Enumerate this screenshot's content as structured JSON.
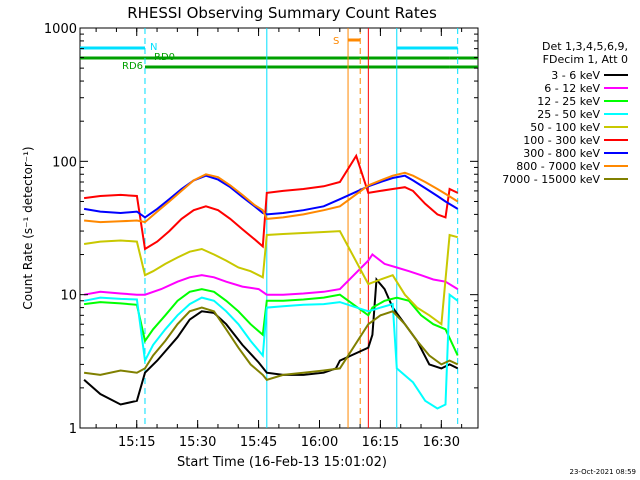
{
  "chart_data": {
    "type": "line",
    "title": "RHESSI Observing Summary Count Rates",
    "xlabel": "Start Time (16-Feb-13 15:01:02)",
    "ylabel": "Count Rate (s⁻¹ detector⁻¹)",
    "x_ticks": [
      "15:15",
      "15:30",
      "15:45",
      "16:00",
      "16:15",
      "16:30"
    ],
    "y_ticks": [
      "1",
      "10",
      "100",
      "1000"
    ],
    "xlim_minutes": [
      0,
      98
    ],
    "ylim": [
      1,
      1000
    ],
    "yscale": "log",
    "legend_header": [
      "Det 1,3,4,5,6,9,",
      "FDecim 1, Att 0"
    ],
    "timestamp": "23-Oct-2021 08:59",
    "flags": [
      {
        "label": "N",
        "color": "#00e0ff",
        "segments": [
          [
            0,
            16
          ],
          [
            78,
            93
          ]
        ]
      },
      {
        "label": "RD0",
        "color": "#00a000",
        "segments": [
          [
            0,
            16
          ],
          [
            16,
            46
          ],
          [
            46,
            71
          ],
          [
            71,
            91
          ],
          [
            91,
            98
          ]
        ]
      },
      {
        "label": "RD6",
        "color": "#00a000",
        "segments": []
      },
      {
        "label": "S",
        "color": "#ff8800",
        "segments": [
          [
            66,
            69
          ]
        ]
      }
    ],
    "series": [
      {
        "name": "3 - 6 keV",
        "color": "#000000",
        "points": [
          [
            1,
            2.3
          ],
          [
            5,
            1.8
          ],
          [
            10,
            1.5
          ],
          [
            14,
            1.6
          ],
          [
            16,
            2.6
          ],
          [
            19,
            3.2
          ],
          [
            24,
            4.8
          ],
          [
            27,
            6.5
          ],
          [
            30,
            7.5
          ],
          [
            33,
            7.3
          ],
          [
            36,
            6
          ],
          [
            40,
            4.2
          ],
          [
            44,
            3.1
          ],
          [
            46,
            2.6
          ],
          [
            50,
            2.5
          ],
          [
            55,
            2.5
          ],
          [
            60,
            2.6
          ],
          [
            63,
            2.8
          ],
          [
            64,
            3.2
          ],
          [
            71,
            4
          ],
          [
            72,
            5
          ],
          [
            73,
            13
          ],
          [
            75,
            11
          ],
          [
            77,
            8
          ],
          [
            80,
            6
          ],
          [
            83,
            4.5
          ],
          [
            86,
            3
          ],
          [
            89,
            2.8
          ],
          [
            91,
            3
          ],
          [
            93,
            2.8
          ]
        ]
      },
      {
        "name": "6 - 12 keV",
        "color": "#ff00ff",
        "points": [
          [
            1,
            10
          ],
          [
            5,
            10.5
          ],
          [
            10,
            10.2
          ],
          [
            14,
            10
          ],
          [
            16,
            10
          ],
          [
            20,
            11
          ],
          [
            24,
            12.5
          ],
          [
            27,
            13.5
          ],
          [
            30,
            14
          ],
          [
            33,
            13.5
          ],
          [
            36,
            12.5
          ],
          [
            40,
            11.5
          ],
          [
            44,
            11
          ],
          [
            46,
            10
          ],
          [
            50,
            10
          ],
          [
            55,
            10.2
          ],
          [
            60,
            10.5
          ],
          [
            64,
            11
          ],
          [
            71,
            18
          ],
          [
            72,
            20
          ],
          [
            75,
            17
          ],
          [
            78,
            16
          ],
          [
            81,
            15
          ],
          [
            84,
            14
          ],
          [
            87,
            13
          ],
          [
            90,
            12.5
          ],
          [
            93,
            11
          ]
        ]
      },
      {
        "name": "12 - 25 keV",
        "color": "#00ff00",
        "points": [
          [
            1,
            8.5
          ],
          [
            5,
            8.8
          ],
          [
            10,
            8.6
          ],
          [
            14,
            8.4
          ],
          [
            16,
            4.5
          ],
          [
            18,
            5.5
          ],
          [
            21,
            7
          ],
          [
            24,
            9
          ],
          [
            27,
            10.5
          ],
          [
            30,
            11
          ],
          [
            33,
            10.5
          ],
          [
            36,
            9
          ],
          [
            39,
            7.5
          ],
          [
            42,
            6
          ],
          [
            45,
            5
          ],
          [
            46,
            9
          ],
          [
            50,
            9
          ],
          [
            55,
            9.2
          ],
          [
            60,
            9.5
          ],
          [
            64,
            10
          ],
          [
            71,
            7
          ],
          [
            72,
            8
          ],
          [
            75,
            9
          ],
          [
            78,
            9.5
          ],
          [
            81,
            9
          ],
          [
            84,
            7
          ],
          [
            87,
            6
          ],
          [
            90,
            5.5
          ],
          [
            93,
            3.5
          ]
        ]
      },
      {
        "name": "25 - 50 keV",
        "color": "#00ffff",
        "points": [
          [
            1,
            9
          ],
          [
            5,
            9.5
          ],
          [
            10,
            9.3
          ],
          [
            14,
            9.2
          ],
          [
            16,
            3.2
          ],
          [
            18,
            4.2
          ],
          [
            21,
            5.5
          ],
          [
            24,
            7
          ],
          [
            27,
            8.5
          ],
          [
            30,
            9.5
          ],
          [
            33,
            9
          ],
          [
            36,
            7.5
          ],
          [
            39,
            6
          ],
          [
            42,
            4.5
          ],
          [
            45,
            3.5
          ],
          [
            46,
            8
          ],
          [
            50,
            8.2
          ],
          [
            55,
            8.4
          ],
          [
            60,
            8.5
          ],
          [
            64,
            8.8
          ],
          [
            71,
            7.5
          ],
          [
            74,
            8
          ],
          [
            77,
            8.5
          ],
          [
            78,
            2.8
          ],
          [
            82,
            2.2
          ],
          [
            85,
            1.6
          ],
          [
            88,
            1.4
          ],
          [
            90,
            1.5
          ],
          [
            91,
            10
          ],
          [
            93,
            9
          ]
        ]
      },
      {
        "name": "50 - 100 keV",
        "color": "#c8c800",
        "points": [
          [
            1,
            24
          ],
          [
            5,
            25
          ],
          [
            10,
            25.5
          ],
          [
            14,
            25
          ],
          [
            16,
            14
          ],
          [
            18,
            15
          ],
          [
            21,
            17
          ],
          [
            24,
            19
          ],
          [
            27,
            21
          ],
          [
            30,
            22
          ],
          [
            33,
            20
          ],
          [
            36,
            18
          ],
          [
            39,
            16
          ],
          [
            42,
            15
          ],
          [
            45,
            13.5
          ],
          [
            46,
            28
          ],
          [
            50,
            28.5
          ],
          [
            55,
            29
          ],
          [
            60,
            29.5
          ],
          [
            64,
            30
          ],
          [
            71,
            12
          ],
          [
            74,
            13
          ],
          [
            77,
            14
          ],
          [
            80,
            10
          ],
          [
            83,
            8
          ],
          [
            86,
            7
          ],
          [
            89,
            6
          ],
          [
            91,
            28
          ],
          [
            93,
            27
          ]
        ]
      },
      {
        "name": "100 - 300 keV",
        "color": "#ff0000",
        "points": [
          [
            1,
            53
          ],
          [
            5,
            55
          ],
          [
            10,
            56
          ],
          [
            14,
            55
          ],
          [
            16,
            22
          ],
          [
            19,
            25
          ],
          [
            22,
            30
          ],
          [
            25,
            37
          ],
          [
            28,
            43
          ],
          [
            31,
            46
          ],
          [
            34,
            43
          ],
          [
            37,
            37
          ],
          [
            40,
            31
          ],
          [
            43,
            26
          ],
          [
            45,
            23
          ],
          [
            46,
            58
          ],
          [
            50,
            60
          ],
          [
            55,
            62
          ],
          [
            60,
            65
          ],
          [
            64,
            70
          ],
          [
            68,
            110
          ],
          [
            71,
            58
          ],
          [
            74,
            60
          ],
          [
            77,
            62
          ],
          [
            80,
            64
          ],
          [
            82,
            60
          ],
          [
            85,
            48
          ],
          [
            88,
            40
          ],
          [
            90,
            38
          ],
          [
            91,
            62
          ],
          [
            93,
            58
          ]
        ]
      },
      {
        "name": "300 - 800 keV",
        "color": "#0000ff",
        "points": [
          [
            1,
            44
          ],
          [
            5,
            42
          ],
          [
            10,
            41
          ],
          [
            14,
            42
          ],
          [
            16,
            38
          ],
          [
            19,
            44
          ],
          [
            22,
            52
          ],
          [
            25,
            62
          ],
          [
            28,
            72
          ],
          [
            31,
            78
          ],
          [
            34,
            73
          ],
          [
            37,
            64
          ],
          [
            40,
            54
          ],
          [
            43,
            46
          ],
          [
            45,
            41
          ],
          [
            46,
            40
          ],
          [
            50,
            41
          ],
          [
            55,
            43
          ],
          [
            60,
            46
          ],
          [
            64,
            52
          ],
          [
            71,
            65
          ],
          [
            74,
            70
          ],
          [
            77,
            75
          ],
          [
            80,
            78
          ],
          [
            82,
            72
          ],
          [
            85,
            63
          ],
          [
            88,
            55
          ],
          [
            90,
            50
          ],
          [
            93,
            44
          ]
        ]
      },
      {
        "name": "800 - 7000 keV",
        "color": "#ff8800",
        "points": [
          [
            1,
            36
          ],
          [
            5,
            35
          ],
          [
            10,
            35.5
          ],
          [
            14,
            36
          ],
          [
            16,
            35
          ],
          [
            19,
            42
          ],
          [
            22,
            50
          ],
          [
            25,
            60
          ],
          [
            28,
            72
          ],
          [
            31,
            80
          ],
          [
            34,
            76
          ],
          [
            37,
            66
          ],
          [
            40,
            56
          ],
          [
            43,
            47
          ],
          [
            45,
            43
          ],
          [
            46,
            37
          ],
          [
            50,
            38
          ],
          [
            55,
            40
          ],
          [
            60,
            43
          ],
          [
            64,
            46
          ],
          [
            71,
            66
          ],
          [
            74,
            72
          ],
          [
            77,
            78
          ],
          [
            80,
            82
          ],
          [
            82,
            78
          ],
          [
            85,
            70
          ],
          [
            88,
            62
          ],
          [
            90,
            57
          ],
          [
            93,
            50
          ]
        ]
      },
      {
        "name": "7000 - 15000 keV",
        "color": "#808000",
        "points": [
          [
            1,
            2.6
          ],
          [
            5,
            2.5
          ],
          [
            10,
            2.7
          ],
          [
            14,
            2.6
          ],
          [
            16,
            2.8
          ],
          [
            18,
            3.5
          ],
          [
            21,
            4.5
          ],
          [
            24,
            6
          ],
          [
            27,
            7.5
          ],
          [
            30,
            8
          ],
          [
            33,
            7.5
          ],
          [
            36,
            5.5
          ],
          [
            39,
            4
          ],
          [
            42,
            3
          ],
          [
            45,
            2.5
          ],
          [
            46,
            2.3
          ],
          [
            50,
            2.5
          ],
          [
            55,
            2.6
          ],
          [
            60,
            2.7
          ],
          [
            64,
            2.8
          ],
          [
            71,
            6
          ],
          [
            74,
            7
          ],
          [
            77,
            7.5
          ],
          [
            80,
            6
          ],
          [
            83,
            4.5
          ],
          [
            86,
            3.5
          ],
          [
            89,
            3
          ],
          [
            91,
            3.2
          ],
          [
            93,
            3
          ]
        ]
      }
    ]
  }
}
